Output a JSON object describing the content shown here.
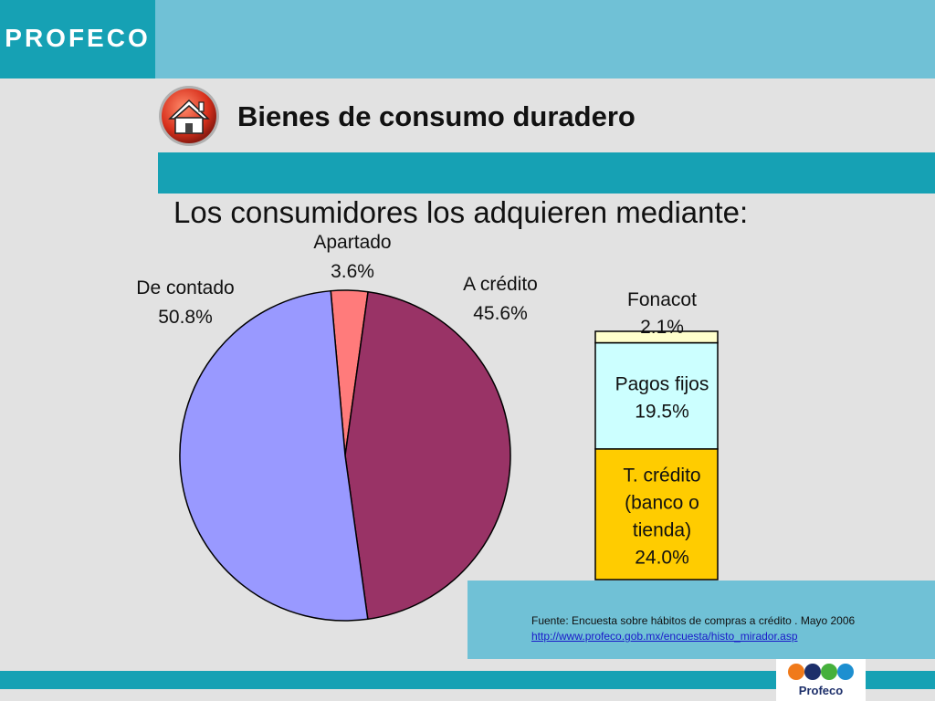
{
  "header": {
    "logo_text": "PROFECO",
    "title": "Bienes de consumo duradero"
  },
  "subtitle": "Los consumidores los adquieren mediante:",
  "chart_data": [
    {
      "type": "pie",
      "title": "",
      "slices": [
        {
          "label": "Apartado",
          "value": 3.6,
          "value_label": "3.6%",
          "color": "#ff7b7b"
        },
        {
          "label": "A crédito",
          "value": 45.6,
          "value_label": "45.6%",
          "color": "#993366"
        },
        {
          "label": "De contado",
          "value": 50.8,
          "value_label": "50.8%",
          "color": "#9999ff"
        }
      ]
    },
    {
      "type": "bar",
      "stacked": true,
      "title": "",
      "segments": [
        {
          "label": "T. crédito (banco o tienda)",
          "label_lines": [
            "T. crédito",
            "(banco o",
            "tienda)"
          ],
          "value": 24.0,
          "value_label": "24.0%",
          "color": "#ffcc00"
        },
        {
          "label": "Pagos fijos",
          "label_lines": [
            "Pagos fijos"
          ],
          "value": 19.5,
          "value_label": "19.5%",
          "color": "#ccffff"
        },
        {
          "label": "Fonacot",
          "label_lines": [
            "Fonacot"
          ],
          "value": 2.1,
          "value_label": "2.1%",
          "color": "#ffffcc"
        }
      ]
    }
  ],
  "source": {
    "text": "Fuente: Encuesta sobre hábitos de compras a crédito . Mayo 2006",
    "url": "http://www.profeco.gob.mx/encuesta/histo_mirador.asp"
  },
  "footer": {
    "logo_text": "Profeco"
  }
}
